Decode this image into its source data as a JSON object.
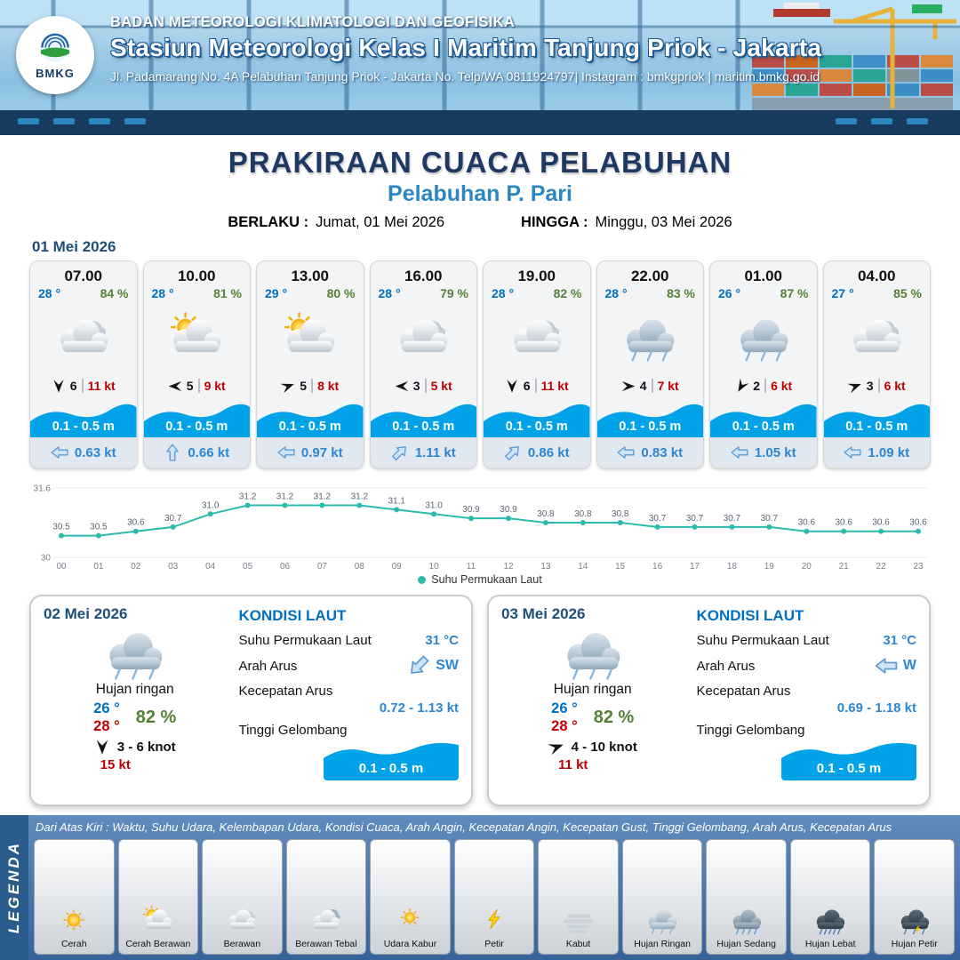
{
  "header": {
    "logo_text": "BMKG",
    "agency": "BADAN METEOROLOGI KLIMATOLOGI DAN GEOFISIKA",
    "station": "Stasiun Meteorologi Kelas I Maritim Tanjung Priok - Jakarta",
    "address": "Jl. Padamarang No. 4A Pelabuhan Tanjung Priok - Jakarta No. Telp/WA 0811924797| Instagram : bmkgpriok | maritim.bmkg.go.id"
  },
  "title": {
    "main": "PRAKIRAAN CUACA PELABUHAN",
    "subtitle": "Pelabuhan P. Pari",
    "berlaku_label": "BERLAKU :",
    "berlaku_value": "Jumat, 01 Mei 2026",
    "hingga_label": "HINGGA :",
    "hingga_value": "Minggu, 03 Mei 2026"
  },
  "forecast": {
    "date": "01 Mei 2026",
    "cards": [
      {
        "time": "07.00",
        "temp": "28 °",
        "humidity": "84 %",
        "icon": "berawan",
        "wind_dir": 270,
        "wind_val": "6",
        "wind_speed": "11 kt",
        "wave": "0.1 - 0.5 m",
        "current_dir": 0,
        "current": "0.63 kt"
      },
      {
        "time": "10.00",
        "temp": "28 °",
        "humidity": "81 %",
        "icon": "cerah-berawan",
        "wind_dir": 0,
        "wind_val": "5",
        "wind_speed": "9 kt",
        "wave": "0.1 - 0.5 m",
        "current_dir": 90,
        "current": "0.66 kt"
      },
      {
        "time": "13.00",
        "temp": "29 °",
        "humidity": "80 %",
        "icon": "cerah-berawan",
        "wind_dir": 160,
        "wind_val": "5",
        "wind_speed": "8 kt",
        "wave": "0.1 - 0.5 m",
        "current_dir": 0,
        "current": "0.97 kt"
      },
      {
        "time": "16.00",
        "temp": "28 °",
        "humidity": "79 %",
        "icon": "berawan",
        "wind_dir": 0,
        "wind_val": "3",
        "wind_speed": "5 kt",
        "wave": "0.1 - 0.5 m",
        "current_dir": 135,
        "current": "1.11 kt"
      },
      {
        "time": "19.00",
        "temp": "28 °",
        "humidity": "82 %",
        "icon": "berawan",
        "wind_dir": 270,
        "wind_val": "6",
        "wind_speed": "11 kt",
        "wave": "0.1 - 0.5 m",
        "current_dir": 135,
        "current": "0.86 kt"
      },
      {
        "time": "22.00",
        "temp": "28 °",
        "humidity": "83 %",
        "icon": "hujan-ringan",
        "wind_dir": 180,
        "wind_val": "4",
        "wind_speed": "7 kt",
        "wave": "0.1 - 0.5 m",
        "current_dir": 0,
        "current": "0.83 kt"
      },
      {
        "time": "01.00",
        "temp": "26 °",
        "humidity": "87 %",
        "icon": "hujan-ringan",
        "wind_dir": 300,
        "wind_val": "2",
        "wind_speed": "6 kt",
        "wave": "0.1 - 0.5 m",
        "current_dir": 0,
        "current": "1.05 kt"
      },
      {
        "time": "04.00",
        "temp": "27 °",
        "humidity": "85 %",
        "icon": "berawan",
        "wind_dir": 160,
        "wind_val": "3",
        "wind_speed": "6 kt",
        "wave": "0.1 - 0.5 m",
        "current_dir": 0,
        "current": "1.09 kt"
      }
    ]
  },
  "chart_data": {
    "type": "line",
    "x": [
      "00",
      "01",
      "02",
      "03",
      "04",
      "05",
      "06",
      "07",
      "08",
      "09",
      "10",
      "11",
      "12",
      "13",
      "14",
      "15",
      "16",
      "17",
      "18",
      "19",
      "20",
      "21",
      "22",
      "23"
    ],
    "series": [
      {
        "name": "Suhu Permukaan Laut",
        "values": [
          30.5,
          30.5,
          30.6,
          30.7,
          31.0,
          31.2,
          31.2,
          31.2,
          31.2,
          31.1,
          31.0,
          30.9,
          30.9,
          30.8,
          30.8,
          30.8,
          30.7,
          30.7,
          30.7,
          30.7,
          30.6,
          30.6,
          30.6,
          30.6
        ]
      }
    ],
    "ylim": [
      30,
      31.6
    ],
    "yticks": [
      30,
      31.6
    ],
    "line_color": "#2bbbad",
    "legend_position": "bottom",
    "grid": false
  },
  "days": [
    {
      "date": "02 Mei 2026",
      "icon": "hujan-ringan",
      "condition": "Hujan ringan",
      "temp_min": "26 °",
      "temp_max": "28 °",
      "humidity": "82 %",
      "wind_dir": 270,
      "wind_range": "3 - 6 knot",
      "gust": "15 kt",
      "sea": {
        "heading": "KONDISI LAUT",
        "sst_label": "Suhu Permukaan Laut",
        "sst_value": "31 °C",
        "current_dir_label": "Arah Arus",
        "current_dir_value": "SW",
        "current_dir_rot": 315,
        "current_speed_label": "Kecepatan Arus",
        "current_speed_value": "0.72 - 1.13 kt",
        "wave_label": "Tinggi Gelombang",
        "wave_value": "0.1 - 0.5 m"
      }
    },
    {
      "date": "03 Mei 2026",
      "icon": "hujan-ringan",
      "condition": "Hujan ringan",
      "temp_min": "26 °",
      "temp_max": "28 °",
      "humidity": "82 %",
      "wind_dir": 160,
      "wind_range": "4 - 10 knot",
      "gust": "11 kt",
      "sea": {
        "heading": "KONDISI LAUT",
        "sst_label": "Suhu Permukaan Laut",
        "sst_value": "31 °C",
        "current_dir_label": "Arah Arus",
        "current_dir_value": "W",
        "current_dir_rot": 0,
        "current_speed_label": "Kecepatan Arus",
        "current_speed_value": "0.69 - 1.18 kt",
        "wave_label": "Tinggi Gelombang",
        "wave_value": "0.1 - 0.5 m"
      }
    }
  ],
  "legend": {
    "title": "LEGENDA",
    "note": "Dari Atas Kiri : Waktu, Suhu Udara, Kelembapan Udara, Kondisi Cuaca, Arah Angin, Kecepatan Angin, Kecepatan Gust, Tinggi Gelombang, Arah Arus, Kecepatan Arus",
    "items": [
      {
        "label": "Cerah",
        "icon": "cerah"
      },
      {
        "label": "Cerah Berawan",
        "icon": "cerah-berawan"
      },
      {
        "label": "Berawan",
        "icon": "berawan"
      },
      {
        "label": "Berawan Tebal",
        "icon": "berawan-tebal"
      },
      {
        "label": "Udara Kabur",
        "icon": "udara-kabur"
      },
      {
        "label": "Petir",
        "icon": "petir"
      },
      {
        "label": "Kabut",
        "icon": "kabut"
      },
      {
        "label": "Hujan Ringan",
        "icon": "hujan-ringan"
      },
      {
        "label": "Hujan Sedang",
        "icon": "hujan-sedang"
      },
      {
        "label": "Hujan Lebat",
        "icon": "hujan-lebat"
      },
      {
        "label": "Hujan Petir",
        "icon": "hujan-petir"
      }
    ]
  },
  "colors": {
    "temp_blue": "#0070c0",
    "humidity_green": "#538135",
    "speed_red": "#c00000",
    "wave_blue": "#00a2e8",
    "chart_teal": "#2bbbad",
    "title_navy": "#1f3864",
    "subtitle_blue": "#2e86c1",
    "header_navy": "#173a5e"
  }
}
